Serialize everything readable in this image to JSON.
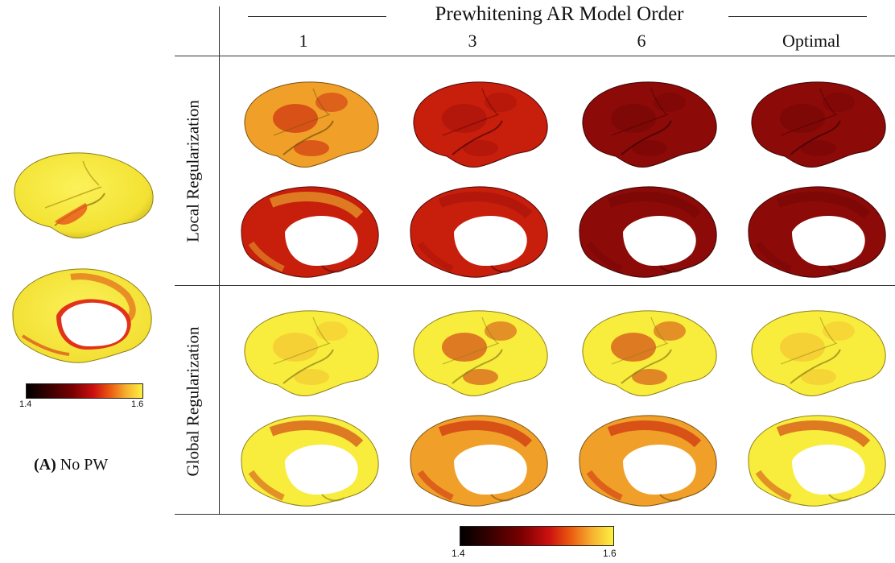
{
  "figure": {
    "header": "Prewhitening AR Model Order",
    "columns": [
      "1",
      "3",
      "6",
      "Optimal"
    ],
    "rows": [
      "Local Regularization",
      "Global Regularization"
    ],
    "colorbar_main": {
      "min": "1.4",
      "max": "1.6"
    },
    "colorbar_left": {
      "min": "1.4",
      "max": "1.6"
    },
    "left_panel": {
      "label_bold": "(A)",
      "label_text": "No PW"
    }
  },
  "colors": {
    "yellow": "#f8ec3c",
    "orange": "#f0a028",
    "red": "#c81e0c",
    "darkred": "#8c0a08",
    "white": "#ffffff"
  },
  "brains": {
    "left_panel": {
      "lateral": "yellow",
      "medial": "yellow"
    },
    "cells": [
      {
        "row": 0,
        "col": 0,
        "lateral": "mixed-orange",
        "medial": "mixed-red"
      },
      {
        "row": 0,
        "col": 1,
        "lateral": "red",
        "medial": "red"
      },
      {
        "row": 0,
        "col": 2,
        "lateral": "darkred",
        "medial": "darkred"
      },
      {
        "row": 0,
        "col": 3,
        "lateral": "darkred",
        "medial": "darkred"
      },
      {
        "row": 1,
        "col": 0,
        "lateral": "yellow",
        "medial": "mixed-yellow"
      },
      {
        "row": 1,
        "col": 1,
        "lateral": "mixed-yellow",
        "medial": "mixed-orange"
      },
      {
        "row": 1,
        "col": 2,
        "lateral": "mixed-yellow",
        "medial": "mixed-orange"
      },
      {
        "row": 1,
        "col": 3,
        "lateral": "yellow",
        "medial": "mixed-yellow"
      }
    ]
  }
}
